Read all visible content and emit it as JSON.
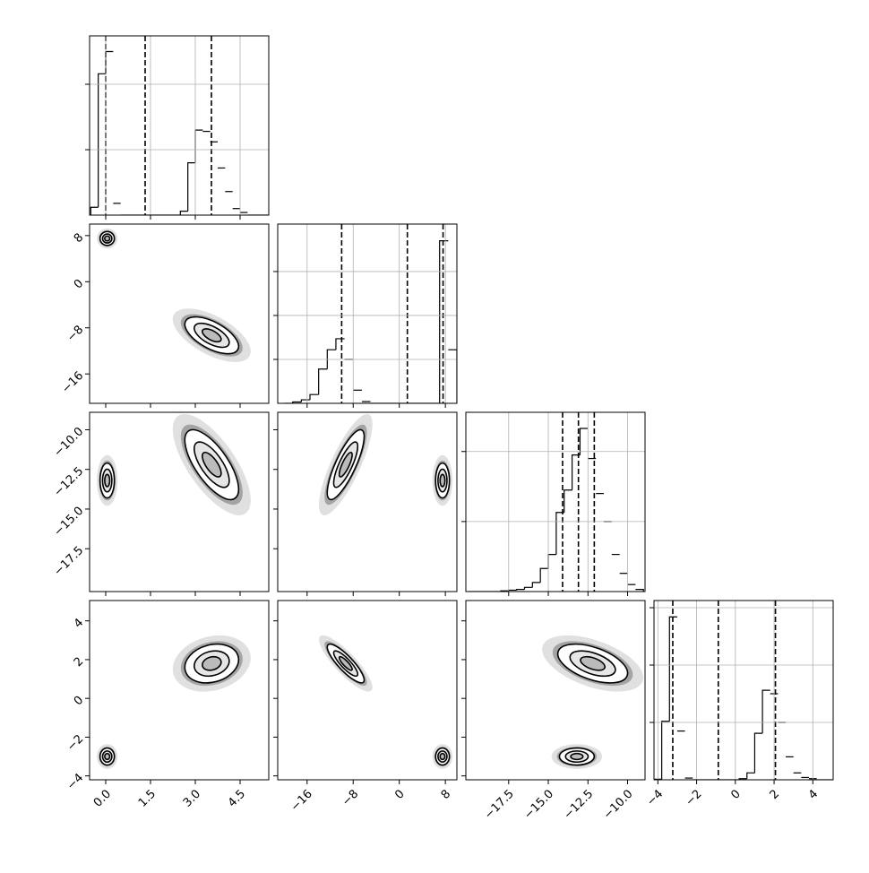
{
  "chart_data": {
    "type": "corner",
    "params": [
      {
        "lim": [
          -0.54,
          5.46
        ],
        "ticks": [
          {
            "value": 0,
            "label": "0.0"
          },
          {
            "value": 1.5,
            "label": "1.5"
          },
          {
            "value": 3,
            "label": "3.0"
          },
          {
            "value": 4.5,
            "label": "4.5"
          }
        ],
        "hist": {
          "bins": [
            -0.5,
            -0.25,
            0,
            0.25,
            0.5,
            0.75,
            1,
            1.25,
            1.5,
            1.75,
            2,
            2.25,
            2.5,
            2.75,
            3,
            3.25,
            3.5,
            3.75,
            4,
            4.25,
            4.5,
            4.75,
            5,
            5.25,
            5.5
          ],
          "counts": [
            60,
            1080,
            1250,
            90,
            0,
            0,
            0,
            0,
            0,
            0,
            0,
            0,
            30,
            400,
            650,
            640,
            560,
            360,
            180,
            50,
            20,
            0,
            0,
            0
          ],
          "ylim": [
            0,
            1370
          ],
          "yticks": [
            500,
            1000
          ]
        },
        "quantiles": [
          0.0,
          1.32,
          3.54
        ]
      },
      {
        "lim": [
          -21.1,
          10
        ],
        "ticks": [
          {
            "value": -16,
            "label": "−16"
          },
          {
            "value": -8,
            "label": "−8"
          },
          0,
          8
        ],
        "hist": {
          "bins": [
            -20,
            -18.5,
            -17,
            -15.5,
            -14,
            -12.5,
            -11,
            -9.5,
            -8,
            -6.5,
            -5,
            -3.5,
            -2,
            -0.5,
            1,
            2.5,
            4,
            5.5,
            7,
            8.5,
            10
          ],
          "counts": [
            0,
            30,
            80,
            200,
            780,
            1220,
            1470,
            1000,
            300,
            40,
            0,
            0,
            0,
            0,
            0,
            0,
            0,
            0,
            3700,
            1220
          ],
          "ylim": [
            0,
            4080
          ],
          "yticks": [
            1000,
            2000,
            3000
          ]
        },
        "quantiles": [
          -10.0,
          1.4,
          7.6
        ]
      },
      {
        "lim": [
          -20.2,
          -8.9
        ],
        "ticks": [
          {
            "value": -17.5,
            "label": "−17.5"
          },
          {
            "value": -15,
            "label": "−15.0"
          },
          {
            "value": -12.5,
            "label": "−12.5"
          },
          {
            "value": -10,
            "label": "−10.0"
          }
        ],
        "hist": {
          "bins": [
            -20,
            -19.5,
            -19,
            -18.5,
            -18,
            -17.5,
            -17,
            -16.5,
            -16,
            -15.5,
            -15,
            -14.5,
            -14,
            -13.5,
            -13,
            -12.5,
            -12,
            -11.5,
            -11,
            -10.5,
            -10,
            -9.5,
            -9
          ],
          "counts": [
            0,
            0,
            0,
            0,
            10,
            20,
            30,
            60,
            130,
            330,
            530,
            1130,
            1450,
            1950,
            2330,
            1900,
            1400,
            1000,
            530,
            260,
            100,
            30
          ],
          "ylim": [
            0,
            2560
          ],
          "yticks": [
            1000,
            2000
          ]
        },
        "quantiles": [
          -14.1,
          -13.1,
          -12.1
        ]
      },
      {
        "lim": [
          -4.2,
          5.05
        ],
        "ticks": [
          {
            "value": -4,
            "label": "−4"
          },
          {
            "value": -2,
            "label": "−2"
          },
          0,
          2,
          4
        ],
        "hist": {
          "bins": [
            -4.2,
            -3.8,
            -3.4,
            -3,
            -2.6,
            -2.2,
            -1.8,
            -1.4,
            -1,
            -0.6,
            -0.2,
            0.2,
            0.6,
            1,
            1.4,
            1.8,
            2.2,
            2.6,
            3,
            3.4,
            3.8,
            4.2,
            4.6,
            5
          ],
          "counts": [
            10,
            1020,
            2840,
            850,
            30,
            0,
            0,
            0,
            0,
            0,
            0,
            20,
            120,
            810,
            1560,
            1500,
            1000,
            400,
            120,
            40,
            20,
            0,
            0
          ],
          "ylim": [
            0,
            3125
          ],
          "yticks": [
            1000,
            2000,
            3000
          ]
        },
        "quantiles": [
          -3.23,
          -0.88,
          2.07
        ]
      }
    ],
    "modes": [
      {
        "mean": [
          0.05,
          7.5,
          -13.2,
          -3.0
        ],
        "sd": [
          0.12,
          0.6,
          0.55,
          0.22
        ]
      },
      {
        "mean": [
          3.55,
          -9.3,
          -12.2,
          1.8
        ],
        "sd": [
          0.45,
          1.6,
          1.1,
          0.5
        ]
      }
    ],
    "corr": [
      [
        [
          0,
          -0.6
        ]
      ],
      [
        [
          0,
          -0.7
        ],
        [
          0,
          0.8
        ]
      ],
      [
        [
          0,
          0.2
        ],
        [
          0,
          -0.85
        ],
        [
          0,
          -0.5
        ]
      ]
    ],
    "levels": [
      0.7,
      1.3,
      2.0
    ],
    "grid": true
  }
}
